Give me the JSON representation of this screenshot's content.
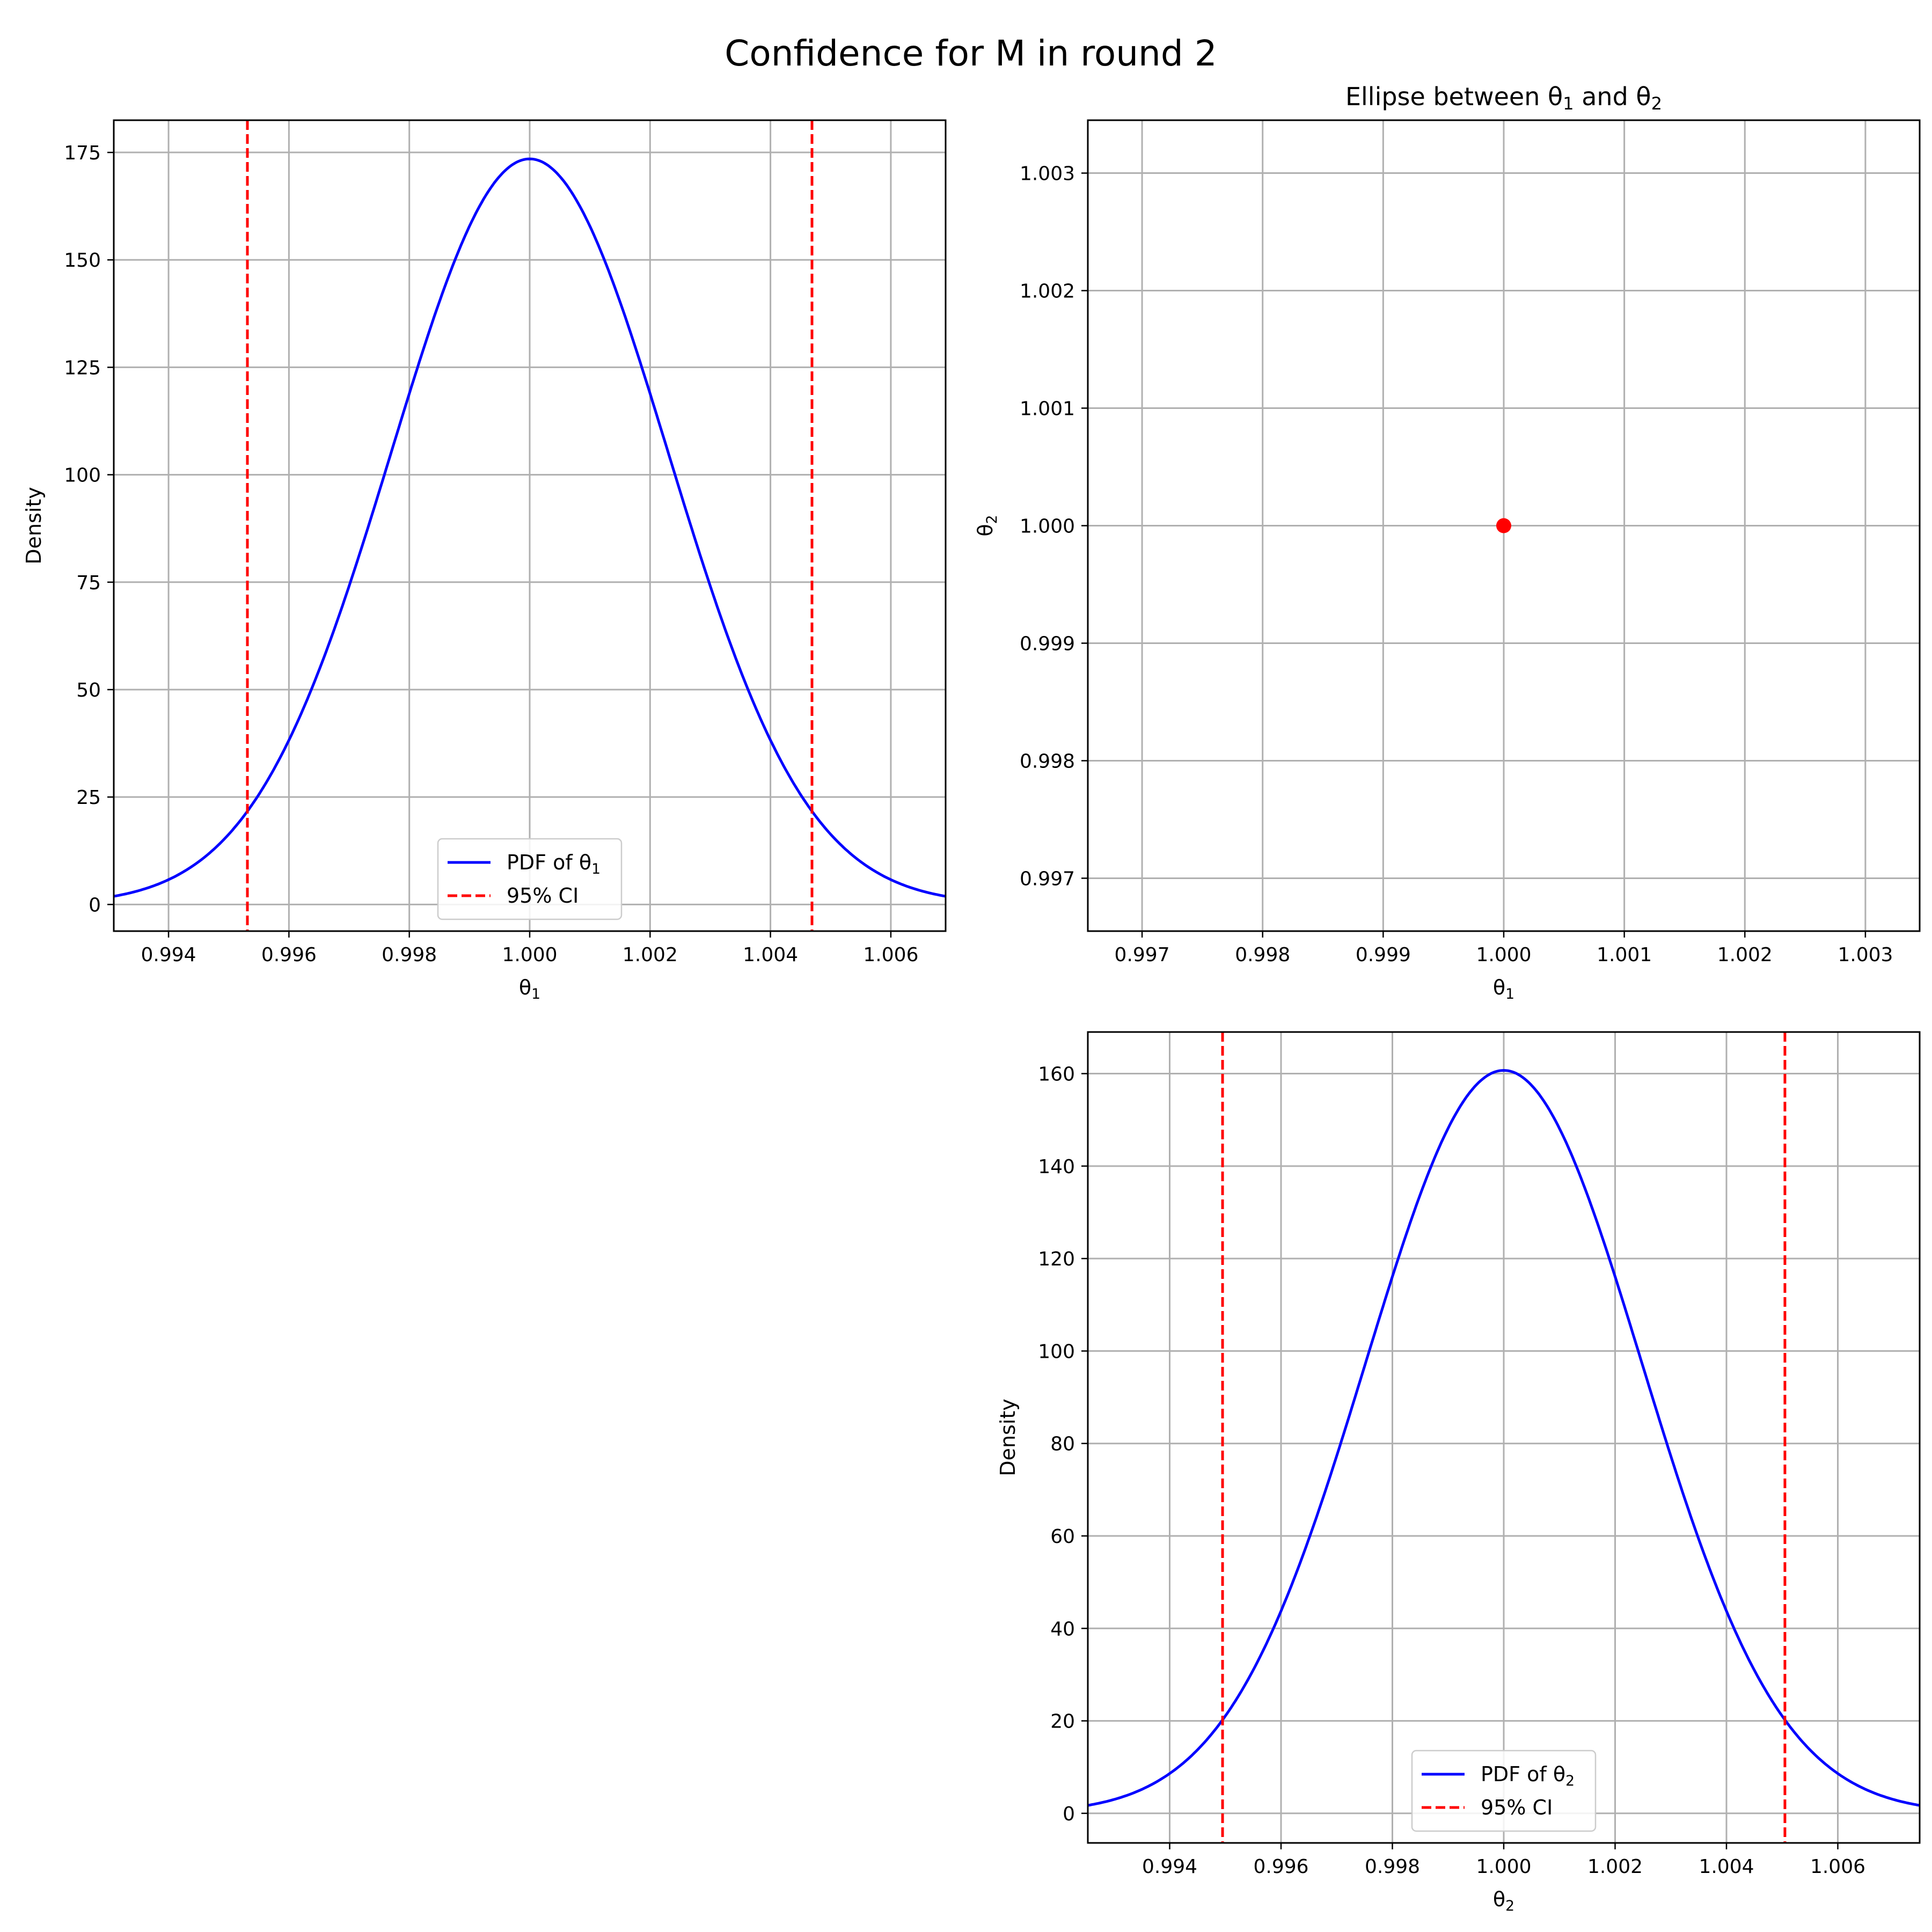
{
  "figure": {
    "suptitle": "Confidence for M in round 2"
  },
  "colors": {
    "pdf_line": "#0000ff",
    "ci_line": "#ff0000",
    "point": "#ff0000",
    "grid": "#b0b0b0"
  },
  "chart_data": [
    {
      "id": "pdf1",
      "type": "line",
      "title": "",
      "xlabel_base": "θ",
      "xlabel_sub": "1",
      "ylabel": "Density",
      "xlim": [
        0.99309,
        1.00691
      ],
      "ylim": [
        -6.2,
        182.5
      ],
      "xticks": [
        0.994,
        0.996,
        0.998,
        1.0,
        1.002,
        1.004,
        1.006
      ],
      "xtick_labels": [
        "0.994",
        "0.996",
        "0.998",
        "1.000",
        "1.002",
        "1.004",
        "1.006"
      ],
      "yticks": [
        0,
        25,
        50,
        75,
        100,
        125,
        150,
        175
      ],
      "ytick_labels": [
        "0",
        "25",
        "50",
        "75",
        "100",
        "125",
        "150",
        "175"
      ],
      "grid": true,
      "series": [
        {
          "kind": "normal_pdf",
          "mean": 1.0,
          "sd": 0.0023,
          "peak": 173.5,
          "style": "solid"
        }
      ],
      "vlines": [
        0.99531,
        1.00469
      ],
      "legend": {
        "position": "lower center",
        "entries": [
          {
            "label_base": "PDF of θ",
            "label_sub": "1",
            "style": "solid"
          },
          {
            "label_base": "95% CI",
            "label_sub": "",
            "style": "dashed"
          }
        ]
      }
    },
    {
      "id": "ellipse",
      "type": "scatter",
      "title_base_1": "Ellipse between θ",
      "title_sub_1": "1",
      "title_mid": " and θ",
      "title_sub_2": "2",
      "xlabel_base": "θ",
      "xlabel_sub": "1",
      "ylabel_base": "θ",
      "ylabel_sub": "2",
      "xlim": [
        0.99655,
        1.00345
      ],
      "ylim": [
        0.99655,
        1.00345
      ],
      "xticks": [
        0.997,
        0.998,
        0.999,
        1.0,
        1.001,
        1.002,
        1.003
      ],
      "xtick_labels": [
        "0.997",
        "0.998",
        "0.999",
        "1.000",
        "1.001",
        "1.002",
        "1.003"
      ],
      "yticks": [
        0.997,
        0.998,
        0.999,
        1.0,
        1.001,
        1.002,
        1.003
      ],
      "ytick_labels": [
        "0.997",
        "0.998",
        "0.999",
        "1.000",
        "1.001",
        "1.002",
        "1.003"
      ],
      "grid": true,
      "points": [
        {
          "x": 1.0,
          "y": 1.0
        }
      ]
    },
    {
      "id": "pdf2",
      "type": "line",
      "title": "",
      "xlabel_base": "θ",
      "xlabel_sub": "2",
      "ylabel": "Density",
      "xlim": [
        0.99253,
        1.00747
      ],
      "ylim": [
        -6.4,
        169.0
      ],
      "xticks": [
        0.994,
        0.996,
        0.998,
        1.0,
        1.002,
        1.004,
        1.006
      ],
      "xtick_labels": [
        "0.994",
        "0.996",
        "0.998",
        "1.000",
        "1.002",
        "1.004",
        "1.006"
      ],
      "yticks": [
        0,
        20,
        40,
        60,
        80,
        100,
        120,
        140,
        160
      ],
      "ytick_labels": [
        "0",
        "20",
        "40",
        "60",
        "80",
        "100",
        "120",
        "140",
        "160"
      ],
      "grid": true,
      "series": [
        {
          "kind": "normal_pdf",
          "mean": 1.0,
          "sd": 0.00248,
          "peak": 160.7,
          "style": "solid"
        }
      ],
      "vlines": [
        0.99495,
        1.00505
      ],
      "legend": {
        "position": "lower center",
        "entries": [
          {
            "label_base": "PDF of θ",
            "label_sub": "2",
            "style": "solid"
          },
          {
            "label_base": "95% CI",
            "label_sub": "",
            "style": "dashed"
          }
        ]
      }
    }
  ]
}
